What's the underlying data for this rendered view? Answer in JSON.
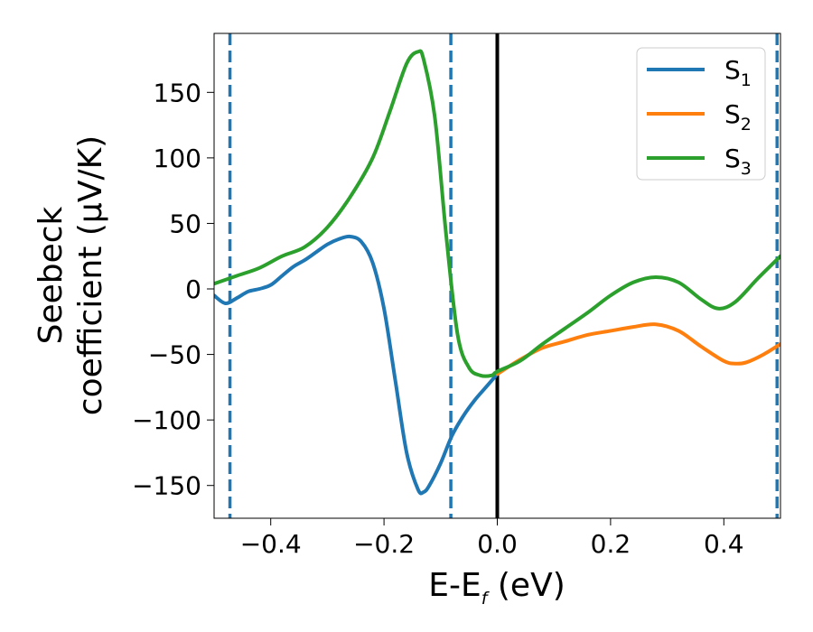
{
  "chart_data": {
    "type": "line",
    "xlabel": {
      "main": "E-E",
      "sub": "f",
      "tail": " (eV)"
    },
    "ylabel_line1": "Seebeck",
    "ylabel_line2": "coefficient  (μV/K)",
    "xlim": [
      -0.5,
      0.5
    ],
    "ylim": [
      -175,
      195
    ],
    "xticks": [
      -0.4,
      -0.2,
      0.0,
      0.2,
      0.4
    ],
    "xtick_labels": [
      "−0.4",
      "−0.2",
      "0.0",
      "0.2",
      "0.4"
    ],
    "yticks": [
      150,
      100,
      50,
      0,
      -50,
      -100,
      -150
    ],
    "ytick_labels": [
      "150",
      "100",
      "50",
      "0",
      "−50",
      "−100",
      "−150"
    ],
    "grid": false,
    "legend_position": "top-right",
    "vertical_lines": [
      {
        "x": -0.472,
        "style": "dashed",
        "color": "#1f77b4"
      },
      {
        "x": -0.082,
        "style": "dashed",
        "color": "#1f77b4"
      },
      {
        "x": 0.0,
        "style": "solid",
        "color": "#000000"
      },
      {
        "x": 0.494,
        "style": "dashed",
        "color": "#1f77b4"
      }
    ],
    "series": [
      {
        "name": "S",
        "sub": "1",
        "color": "#1f77b4",
        "points": [
          [
            -0.5,
            -5
          ],
          [
            -0.48,
            -11
          ],
          [
            -0.46,
            -7
          ],
          [
            -0.44,
            -2
          ],
          [
            -0.42,
            0
          ],
          [
            -0.4,
            3
          ],
          [
            -0.38,
            10
          ],
          [
            -0.36,
            17
          ],
          [
            -0.34,
            22
          ],
          [
            -0.32,
            28
          ],
          [
            -0.3,
            34
          ],
          [
            -0.28,
            38
          ],
          [
            -0.26,
            40
          ],
          [
            -0.24,
            36
          ],
          [
            -0.22,
            20
          ],
          [
            -0.2,
            -15
          ],
          [
            -0.18,
            -70
          ],
          [
            -0.16,
            -125
          ],
          [
            -0.14,
            -153
          ],
          [
            -0.13,
            -155
          ],
          [
            -0.12,
            -150
          ],
          [
            -0.1,
            -133
          ],
          [
            -0.08,
            -112
          ],
          [
            -0.06,
            -97
          ],
          [
            -0.04,
            -85
          ],
          [
            -0.02,
            -75
          ],
          [
            0.0,
            -65
          ]
        ]
      },
      {
        "name": "S",
        "sub": "2",
        "color": "#ff7f0e",
        "points": [
          [
            0.0,
            -65
          ],
          [
            0.04,
            -54
          ],
          [
            0.08,
            -45
          ],
          [
            0.12,
            -40
          ],
          [
            0.16,
            -35
          ],
          [
            0.2,
            -32
          ],
          [
            0.24,
            -29
          ],
          [
            0.28,
            -27
          ],
          [
            0.32,
            -32
          ],
          [
            0.36,
            -44
          ],
          [
            0.4,
            -55
          ],
          [
            0.42,
            -57
          ],
          [
            0.44,
            -56
          ],
          [
            0.47,
            -50
          ],
          [
            0.5,
            -42
          ]
        ]
      },
      {
        "name": "S",
        "sub": "3",
        "color": "#2ca02c",
        "points": [
          [
            -0.5,
            4
          ],
          [
            -0.46,
            10
          ],
          [
            -0.42,
            16
          ],
          [
            -0.38,
            25
          ],
          [
            -0.34,
            32
          ],
          [
            -0.3,
            47
          ],
          [
            -0.26,
            70
          ],
          [
            -0.22,
            100
          ],
          [
            -0.19,
            135
          ],
          [
            -0.16,
            172
          ],
          [
            -0.14,
            181
          ],
          [
            -0.13,
            175
          ],
          [
            -0.11,
            130
          ],
          [
            -0.09,
            40
          ],
          [
            -0.07,
            -35
          ],
          [
            -0.05,
            -60
          ],
          [
            -0.03,
            -66
          ],
          [
            -0.01,
            -66
          ],
          [
            0.0,
            -63
          ],
          [
            0.04,
            -55
          ],
          [
            0.08,
            -42
          ],
          [
            0.12,
            -30
          ],
          [
            0.16,
            -18
          ],
          [
            0.2,
            -5
          ],
          [
            0.24,
            5
          ],
          [
            0.28,
            9
          ],
          [
            0.32,
            5
          ],
          [
            0.36,
            -8
          ],
          [
            0.39,
            -15
          ],
          [
            0.42,
            -10
          ],
          [
            0.46,
            8
          ],
          [
            0.5,
            25
          ]
        ]
      }
    ]
  }
}
